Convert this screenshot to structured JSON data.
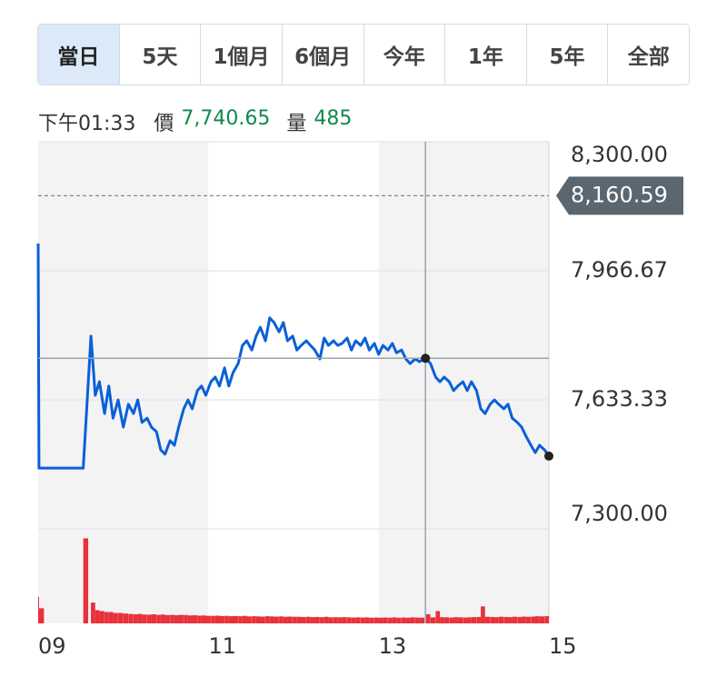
{
  "tabs": {
    "items": [
      "當日",
      "5天",
      "1個月",
      "6個月",
      "今年",
      "1年",
      "5年",
      "全部"
    ],
    "active": 0
  },
  "info": {
    "time": "下午01:33",
    "price_name": "價",
    "price": {
      "value": 7740.65,
      "label": "7,740.65"
    },
    "volume_name": "量",
    "volume": 485
  },
  "chart_data": {
    "type": "line",
    "x": [
      9.0,
      9.01,
      9.53,
      9.62,
      9.67,
      9.72,
      9.78,
      9.83,
      9.88,
      9.94,
      10.0,
      10.06,
      10.12,
      10.17,
      10.22,
      10.28,
      10.33,
      10.39,
      10.44,
      10.49,
      10.55,
      10.6,
      10.65,
      10.71,
      10.76,
      10.81,
      10.87,
      10.92,
      10.97,
      11.03,
      11.08,
      11.13,
      11.19,
      11.24,
      11.29,
      11.35,
      11.4,
      11.45,
      11.51,
      11.56,
      11.61,
      11.67,
      11.72,
      11.77,
      11.83,
      11.88,
      11.93,
      11.99,
      12.04,
      12.09,
      12.15,
      12.2,
      12.25,
      12.31,
      12.36,
      12.41,
      12.47,
      12.52,
      12.57,
      12.63,
      12.68,
      12.73,
      12.79,
      12.84,
      12.89,
      12.95,
      13.0,
      13.05,
      13.11,
      13.16,
      13.21,
      13.27,
      13.32,
      13.37,
      13.43,
      13.48,
      13.55,
      13.61,
      13.67,
      13.72,
      13.77,
      13.83,
      13.88,
      13.93,
      13.99,
      14.04,
      14.09,
      14.15,
      14.2,
      14.25,
      14.31,
      14.36,
      14.41,
      14.47,
      14.52,
      14.57,
      14.63,
      14.68,
      14.73,
      14.79,
      14.84,
      14.89,
      14.95,
      15.0
    ],
    "series": [
      {
        "color": "#0a60d8",
        "values": [
          8037,
          7457,
          7457,
          7798,
          7645,
          7680,
          7598,
          7669,
          7586,
          7633,
          7563,
          7622,
          7598,
          7633,
          7575,
          7586,
          7563,
          7551,
          7504,
          7493,
          7528,
          7516,
          7563,
          7610,
          7633,
          7610,
          7657,
          7669,
          7645,
          7680,
          7692,
          7669,
          7716,
          7669,
          7704,
          7727,
          7774,
          7786,
          7762,
          7798,
          7821,
          7786,
          7845,
          7833,
          7809,
          7833,
          7786,
          7798,
          7762,
          7774,
          7786,
          7774,
          7762,
          7739,
          7793,
          7774,
          7786,
          7774,
          7779,
          7793,
          7762,
          7786,
          7774,
          7793,
          7762,
          7779,
          7751,
          7774,
          7762,
          7779,
          7755,
          7762,
          7739,
          7727,
          7739,
          7732,
          7741,
          7727,
          7692,
          7680,
          7692,
          7680,
          7657,
          7669,
          7680,
          7657,
          7680,
          7657,
          7610,
          7598,
          7622,
          7633,
          7622,
          7610,
          7622,
          7586,
          7575,
          7563,
          7540,
          7516,
          7497,
          7516,
          7504,
          7488
        ]
      },
      {
        "color": "#e8313a",
        "axis": "y2",
        "values": [
          1400,
          800,
          4500,
          1100,
          700,
          650,
          600,
          600,
          550,
          550,
          520,
          500,
          480,
          500,
          470,
          460,
          480,
          450,
          470,
          440,
          450,
          430,
          450,
          440,
          420,
          430,
          410,
          420,
          400,
          400,
          410,
          390,
          400,
          380,
          390,
          380,
          400,
          370,
          380,
          370,
          360,
          380,
          370,
          360,
          370,
          350,
          360,
          350,
          350,
          340,
          350,
          330,
          340,
          330,
          350,
          320,
          330,
          320,
          330,
          320,
          310,
          320,
          310,
          320,
          300,
          310,
          300,
          310,
          300,
          320,
          300,
          310,
          300,
          320,
          310,
          300,
          485,
          320,
          650,
          330,
          320,
          310,
          330,
          320,
          310,
          320,
          330,
          340,
          900,
          350,
          340,
          330,
          350,
          340,
          330,
          350,
          340,
          360,
          350,
          360,
          380,
          370,
          380,
          400
        ]
      }
    ],
    "xlim": [
      9,
      15
    ],
    "xticks": [
      {
        "value": 9,
        "label": "09"
      },
      {
        "value": 11,
        "label": "11"
      },
      {
        "value": 13,
        "label": "13"
      },
      {
        "value": 15,
        "label": "15"
      }
    ],
    "ylim": [
      7300,
      8300
    ],
    "yticks": [
      {
        "value": 8300,
        "label": "8,300.00"
      },
      {
        "value": 7966.67,
        "label": "7,966.67"
      },
      {
        "value": 7633.33,
        "label": "7,633.33"
      },
      {
        "value": 7300,
        "label": "7,300.00"
      }
    ],
    "y2lim": [
      0,
      5000
    ],
    "reference": {
      "value": 8160.59,
      "label": "8,160.59"
    },
    "crosshair_x": 13.55,
    "grid": true
  }
}
